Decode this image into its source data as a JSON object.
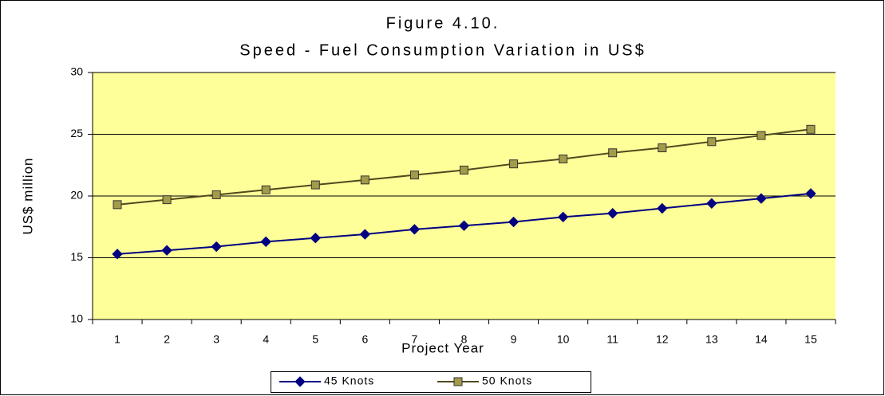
{
  "chart_data": {
    "type": "line",
    "title": "Figure 4.10.",
    "subtitle": "Speed - Fuel Consumption Variation in US$",
    "x_label": "Project Year",
    "y_label": "US$ million",
    "categories": [
      "1",
      "2",
      "3",
      "4",
      "5",
      "6",
      "7",
      "8",
      "9",
      "10",
      "11",
      "12",
      "13",
      "14",
      "15"
    ],
    "series": [
      {
        "name": "45 Knots",
        "color": "#000080",
        "marker": "diamond",
        "marker_fill": "#000080",
        "values": [
          15.3,
          15.6,
          15.9,
          16.3,
          16.6,
          16.9,
          17.3,
          17.6,
          17.9,
          18.3,
          18.6,
          19.0,
          19.4,
          19.8,
          20.2
        ]
      },
      {
        "name": "50 Knots",
        "color": "#4f4a1e",
        "marker": "square",
        "marker_fill": "#a39b4a",
        "values": [
          19.3,
          19.7,
          20.1,
          20.5,
          20.9,
          21.3,
          21.7,
          22.1,
          22.6,
          23.0,
          23.5,
          23.9,
          24.4,
          24.9,
          25.4
        ]
      }
    ],
    "ylim": [
      10,
      30
    ],
    "yticks": [
      10,
      15,
      20,
      25,
      30
    ],
    "grid": true,
    "plot_background": "#ffff99",
    "legend": "bottom"
  }
}
